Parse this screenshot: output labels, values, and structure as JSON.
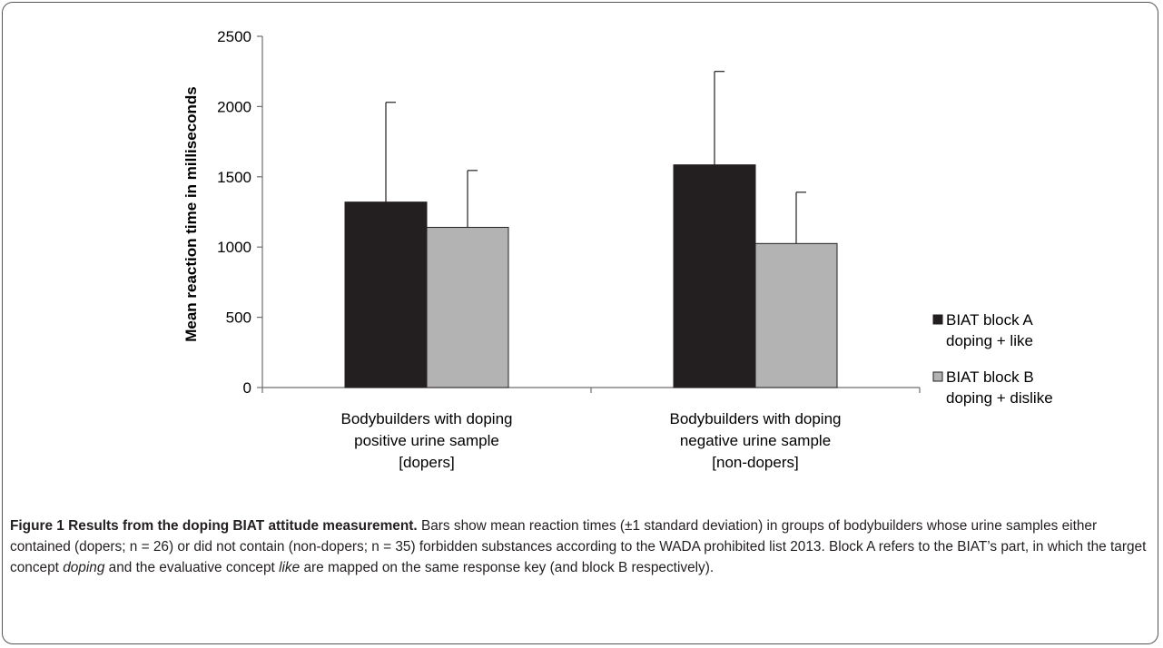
{
  "chart_data": {
    "type": "bar",
    "title": "",
    "ylabel": "Mean reaction time in milliseconds",
    "xlabel": "",
    "ylim": [
      0,
      2500
    ],
    "yticks": [
      0,
      500,
      1000,
      1500,
      2000,
      2500
    ],
    "grid": false,
    "legend_position": "right",
    "categories": [
      [
        "Bodybuilders with doping",
        "positive urine sample",
        "[dopers]"
      ],
      [
        "Bodybuilders with doping",
        "negative urine sample",
        "[non-dopers]"
      ]
    ],
    "series": [
      {
        "name": [
          "BIAT block A",
          "doping + like"
        ],
        "color": "#231f20",
        "values": [
          1320,
          1585
        ],
        "error_upper": [
          2030,
          2250
        ]
      },
      {
        "name": [
          "BIAT block B",
          "doping + dislike"
        ],
        "color": "#b3b3b3",
        "values": [
          1140,
          1025
        ],
        "error_upper": [
          1545,
          1390
        ]
      }
    ]
  },
  "caption": {
    "label": "Figure 1",
    "title": " Results from the doping BIAT attitude measurement.",
    "part1": " Bars show mean reaction times (±1 standard deviation) in groups of bodybuilders whose urine samples either contained (dopers; n = 26) or did not contain (non-dopers; n = 35) forbidden substances according to the WADA prohibited list 2013. Block A refers to the BIAT’s part, in which the target concept ",
    "em1": "doping",
    "part2": " and the evaluative concept ",
    "em2": "like",
    "part3": " are mapped on the same response key (and block B respectively)."
  }
}
